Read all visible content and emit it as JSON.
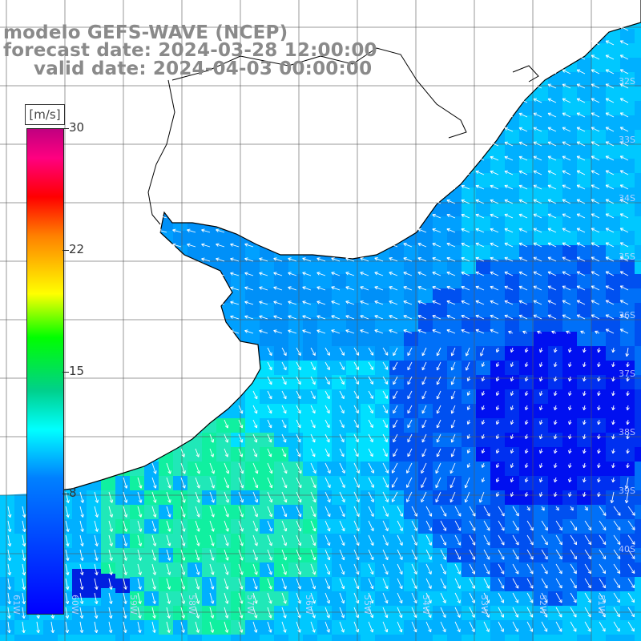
{
  "title": {
    "line1": "modelo GEFS-WAVE (NCEP)",
    "line2": "forecast date: 2024-03-28 12:00:00",
    "line3": "valid date: 2024-04-03 00:00:00"
  },
  "colorbar": {
    "unit": "[m/s]",
    "ticks": [
      "30",
      "22",
      "15",
      "8"
    ],
    "colors": [
      "#0000ff",
      "#0080ff",
      "#00ffff",
      "#00d08c",
      "#00ff00",
      "#ffff00",
      "#ff8000",
      "#ff0000",
      "#ff0080",
      "#c00080"
    ]
  },
  "grid": {
    "lat_labels": [
      "32S",
      "33S",
      "34S",
      "35S",
      "36S",
      "37S",
      "38S",
      "39S",
      "40S"
    ],
    "lon_labels": [
      "61W",
      "60W",
      "59W",
      "58W",
      "57W",
      "56W",
      "55W",
      "54W",
      "53W",
      "52W",
      "51W"
    ]
  },
  "colors": {
    "land": "#ffffff",
    "coast": "#000000",
    "grid_line": "#555555",
    "arrow": "#ffffff"
  }
}
